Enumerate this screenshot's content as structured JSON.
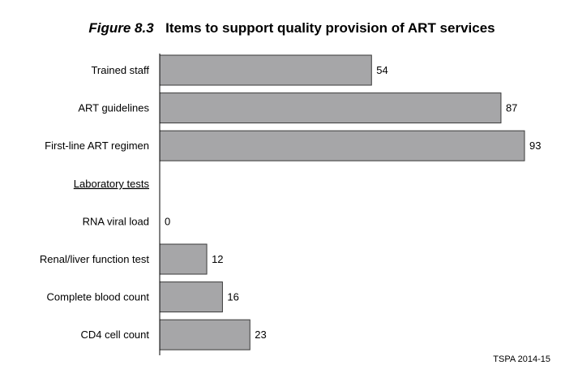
{
  "figure_label": "Figure 8.3",
  "chart_data": {
    "type": "bar",
    "orientation": "horizontal",
    "title": "Items to support quality provision of ART services",
    "categories": [
      "Trained staff",
      "ART guidelines",
      "First-line ART regimen",
      "Laboratory tests",
      "RNA viral load",
      "Renal/liver function test",
      "Complete blood count",
      "CD4 cell count"
    ],
    "values": [
      54,
      87,
      93,
      null,
      0,
      12,
      16,
      23
    ],
    "group_headers": [
      "Laboratory tests"
    ],
    "xlim": [
      0,
      93
    ],
    "grid": false,
    "bar_color": "#a6a6a8",
    "source_note": "TSPA 2014-15"
  }
}
